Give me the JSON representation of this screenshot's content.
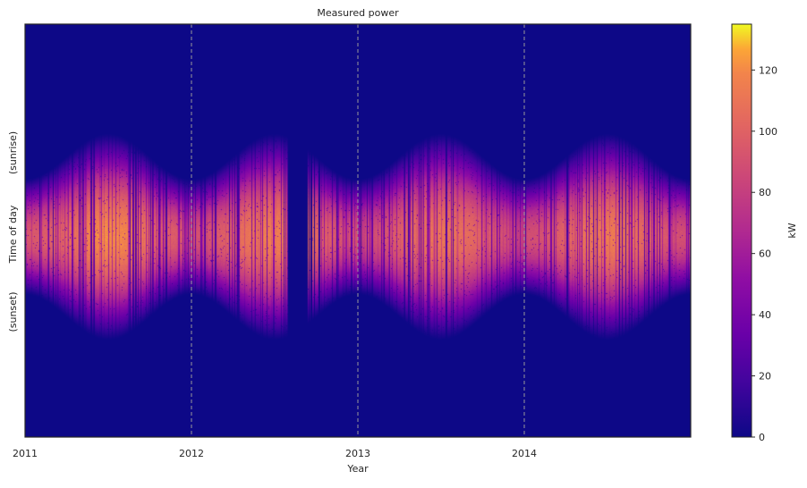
{
  "chart_data": {
    "type": "heatmap",
    "title": "Measured power",
    "xlabel": "Year",
    "ylabel": "Time of day",
    "ylabel_top": "(sunrise)",
    "ylabel_bottom": "(sunset)",
    "x_ticks": [
      "2011",
      "2012",
      "2013",
      "2014"
    ],
    "x_range": [
      2011.0,
      2015.0
    ],
    "year_dividers": [
      2012,
      2013,
      2014
    ],
    "colormap": "plasma",
    "colorbar": {
      "label": "kW",
      "range": [
        0,
        135
      ],
      "ticks": [
        0,
        20,
        40,
        60,
        80,
        100,
        120
      ]
    },
    "seasonal_peak_kw": [
      {
        "year": "2011",
        "value": 125
      },
      {
        "year": "2012",
        "value": 120
      },
      {
        "year": "2013",
        "value": 115
      },
      {
        "year": "2014",
        "value": 118
      }
    ],
    "data_gap": {
      "start": 2012.58,
      "end": 2012.7,
      "value": 0
    },
    "grid": false
  },
  "colors": {
    "divider": "#999999",
    "frame": "#262626",
    "background": "#0d0887"
  }
}
